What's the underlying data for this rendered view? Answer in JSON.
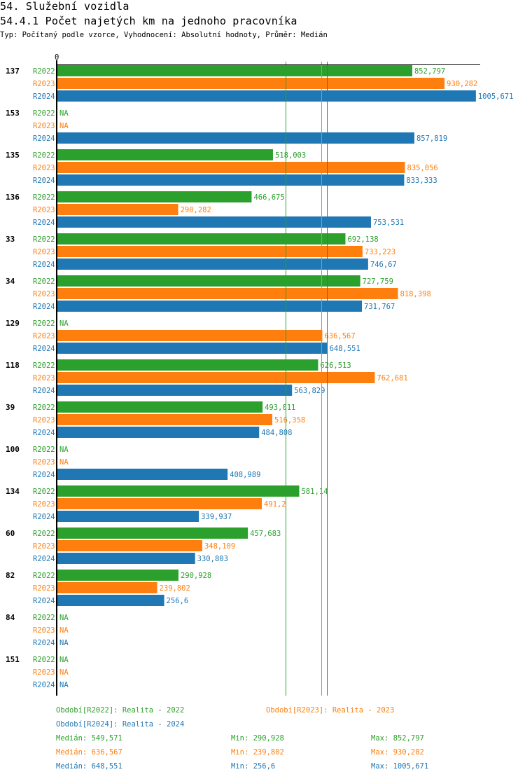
{
  "header": {
    "section_title": "54. Služební vozidla",
    "chart_title": "54.4.1 Počet najetých km na jednoho pracovníka",
    "subtitle": "Typ: Počítaný podle vzorce, Vyhodnocení: Absolutní hodnoty, Průměr: Medián"
  },
  "colors": {
    "R2022": "#2ca02c",
    "R2023": "#ff7f0e",
    "R2024": "#1f77b4"
  },
  "chart_data": {
    "type": "bar",
    "orientation": "horizontal",
    "title": "54.4.1 Počet najetých km na jednoho pracovníka",
    "xlabel": "",
    "ylabel": "",
    "x_tick_labels": [
      "0"
    ],
    "xlim": [
      0,
      1005.671
    ],
    "na_label": "NA",
    "series_names": [
      "R2022",
      "R2023",
      "R2024"
    ],
    "categories": [
      "137",
      "153",
      "135",
      "136",
      "33",
      "34",
      "129",
      "118",
      "39",
      "100",
      "134",
      "60",
      "82",
      "84",
      "151"
    ],
    "series": [
      {
        "name": "R2022",
        "values": [
          852.797,
          null,
          518.003,
          466.675,
          692.138,
          727.759,
          null,
          626.513,
          493.011,
          null,
          581.14,
          457.683,
          290.928,
          null,
          null
        ],
        "labels": [
          "852,797",
          "NA",
          "518,003",
          "466,675",
          "692,138",
          "727,759",
          "NA",
          "626,513",
          "493,011",
          "NA",
          "581,14",
          "457,683",
          "290,928",
          "NA",
          "NA"
        ]
      },
      {
        "name": "R2023",
        "values": [
          930.282,
          null,
          835.056,
          290.282,
          733.223,
          818.398,
          636.567,
          762.681,
          516.358,
          null,
          491.2,
          348.109,
          239.802,
          null,
          null
        ],
        "labels": [
          "930,282",
          "NA",
          "835,056",
          "290,282",
          "733,223",
          "818,398",
          "636,567",
          "762,681",
          "516,358",
          "NA",
          "491,2",
          "348,109",
          "239,802",
          "NA",
          "NA"
        ]
      },
      {
        "name": "R2024",
        "values": [
          1005.671,
          857.819,
          833.333,
          753.531,
          746.67,
          731.767,
          648.551,
          563.829,
          484.808,
          408.989,
          339.937,
          330.803,
          256.6,
          null,
          null
        ],
        "labels": [
          "1005,671",
          "857,819",
          "833,333",
          "753,531",
          "746,67",
          "731,767",
          "648,551",
          "563,829",
          "484,808",
          "408,989",
          "339,937",
          "330,803",
          "256,6",
          "NA",
          "NA"
        ]
      }
    ],
    "reference_lines": [
      {
        "series": "R2022",
        "type": "median",
        "value": 549.571
      },
      {
        "series": "R2023",
        "type": "median",
        "value": 636.567
      },
      {
        "series": "R2024",
        "type": "median",
        "value": 648.551
      }
    ]
  },
  "legend": {
    "periods": [
      {
        "key": "R2022",
        "text": "Období[R2022]: Realita - 2022"
      },
      {
        "key": "R2023",
        "text": "Období[R2023]: Realita - 2023"
      },
      {
        "key": "R2024",
        "text": "Období[R2024]: Realita - 2024"
      }
    ],
    "stats": [
      {
        "key": "R2022",
        "median": "Medián: 549,571",
        "min": "Min: 290,928",
        "max": "Max: 852,797"
      },
      {
        "key": "R2023",
        "median": "Medián: 636,567",
        "min": "Min: 239,802",
        "max": "Max: 930,282"
      },
      {
        "key": "R2024",
        "median": "Medián: 648,551",
        "min": "Min: 256,6",
        "max": "Max: 1005,671"
      }
    ]
  }
}
